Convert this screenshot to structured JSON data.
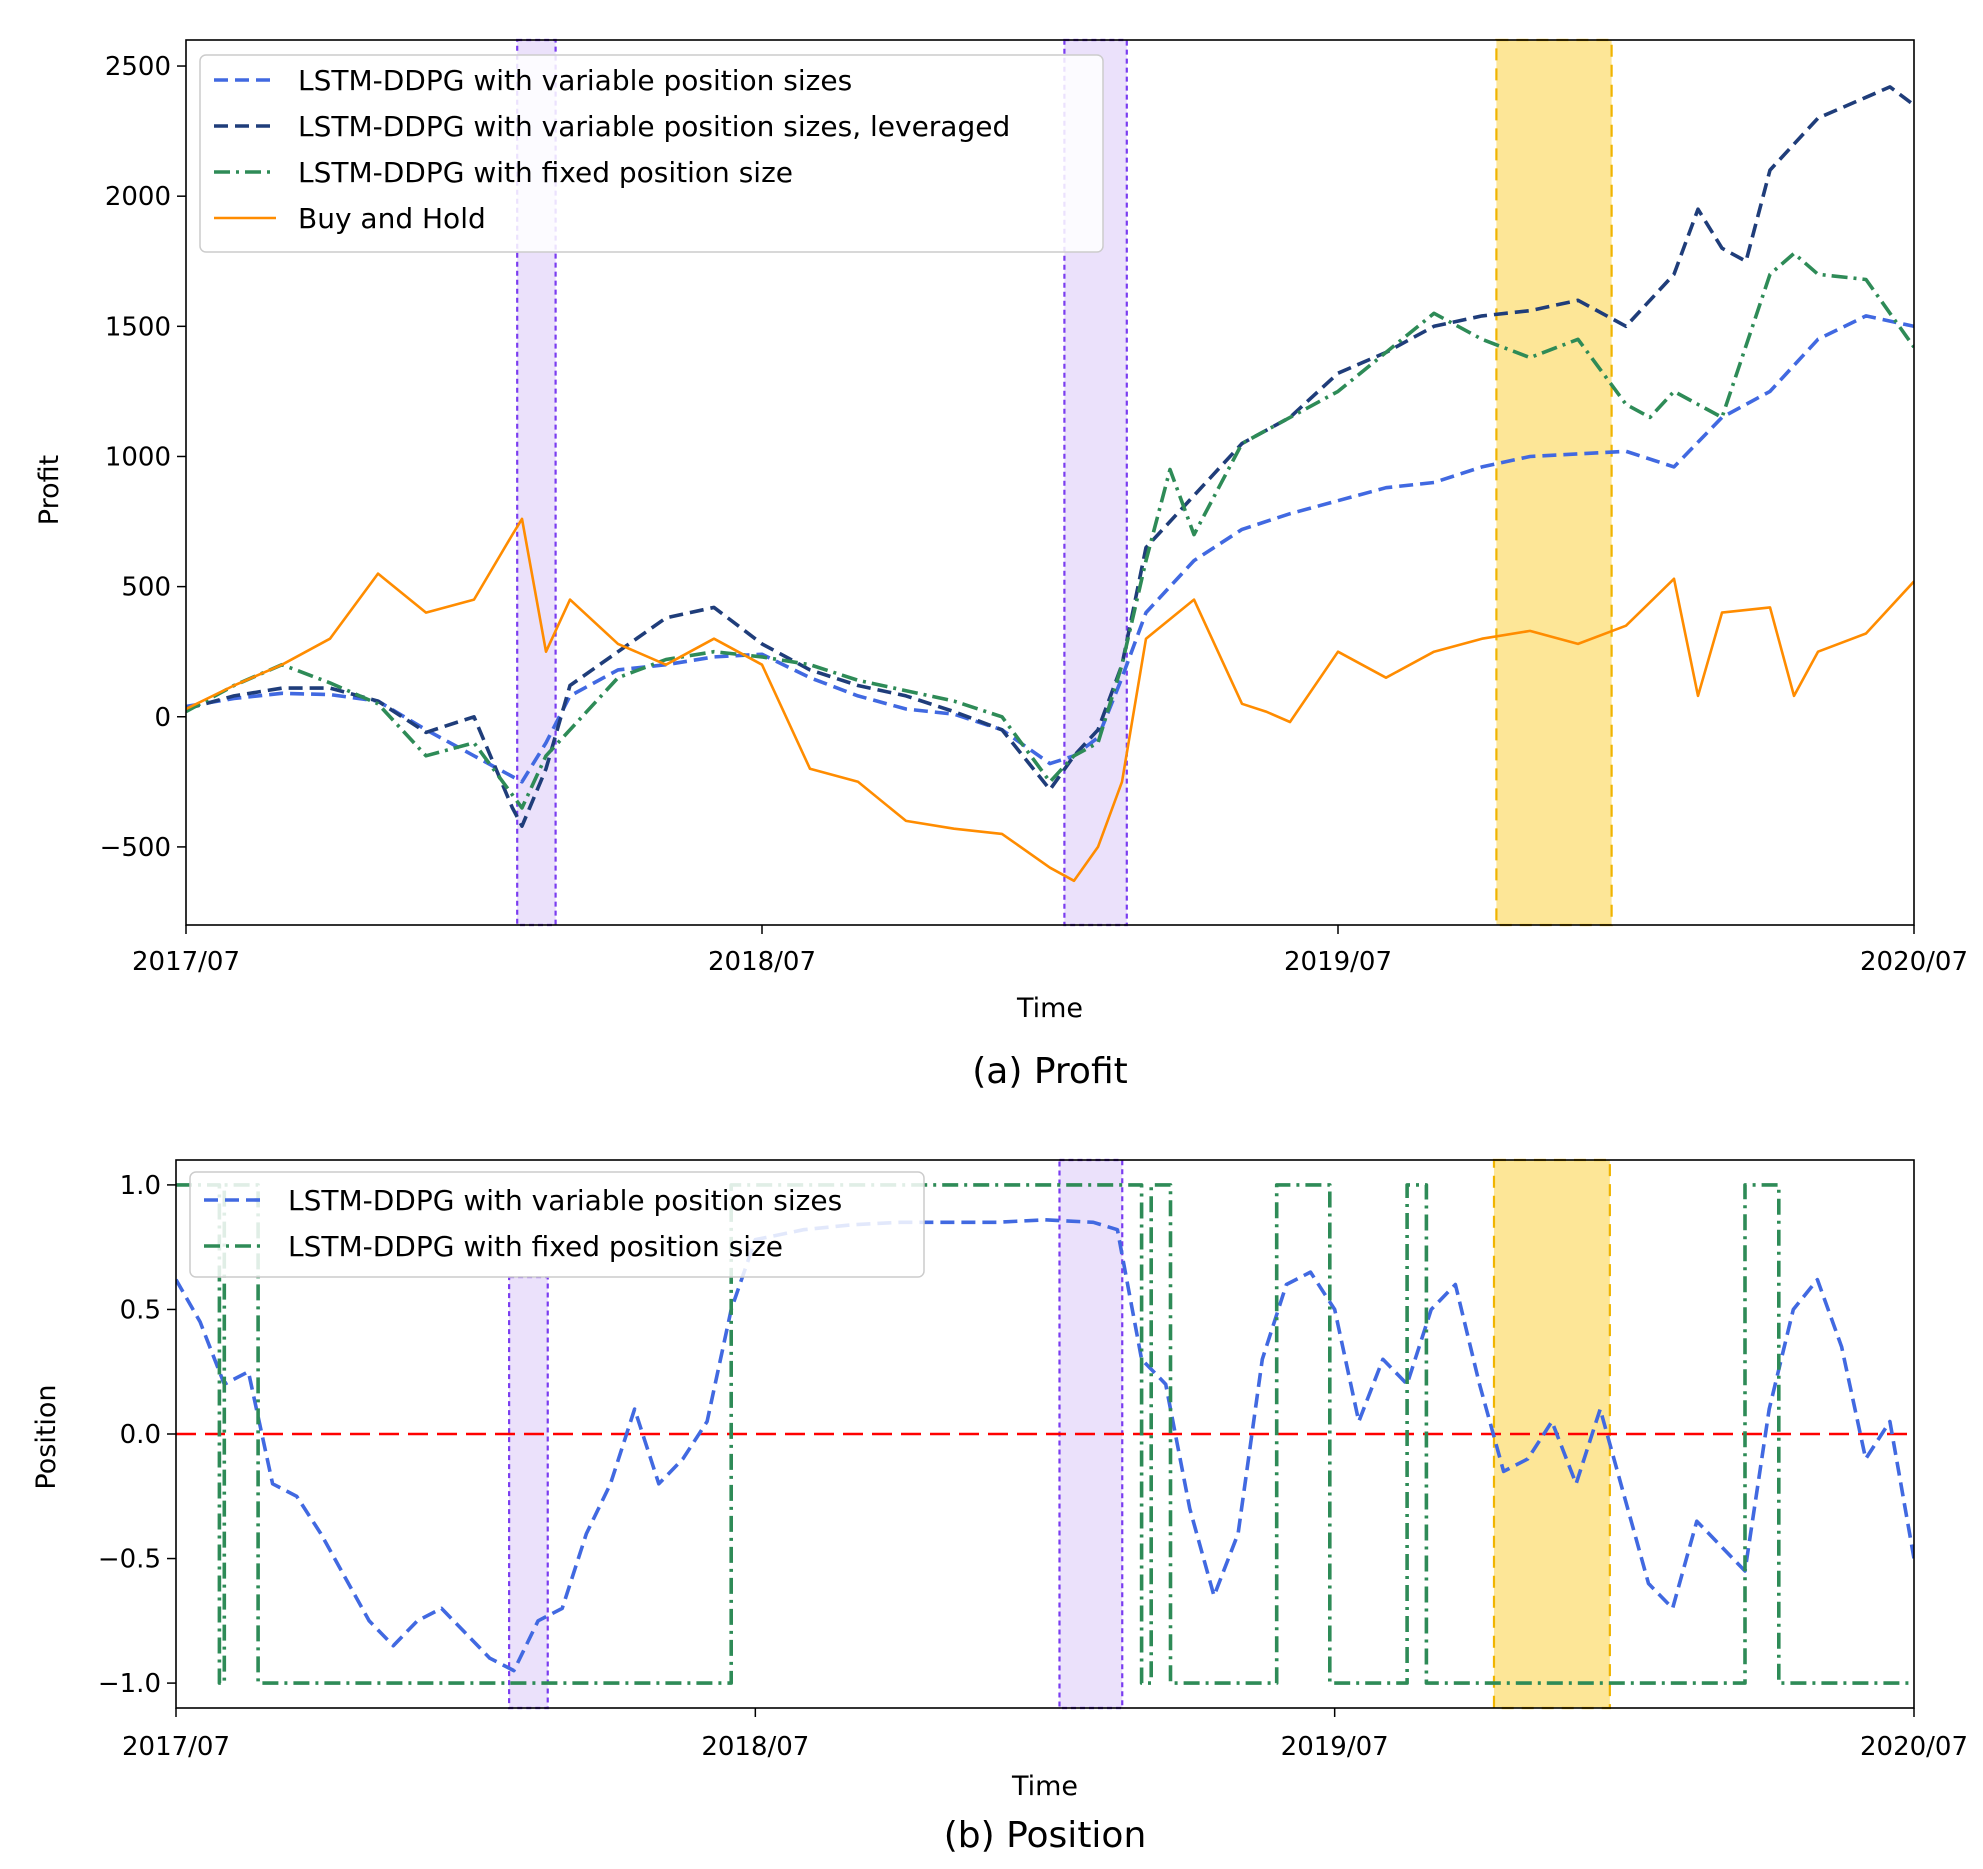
{
  "chart_data": [
    {
      "type": "line",
      "caption": "(a) Profit",
      "xlabel": "Time",
      "ylabel": "Profit",
      "xlim": [
        0,
        36
      ],
      "ylim": [
        -800,
        2600
      ],
      "x_ticks": [
        {
          "value": 0,
          "label": "2017/07"
        },
        {
          "value": 12,
          "label": "2018/07"
        },
        {
          "value": 24,
          "label": "2019/07"
        },
        {
          "value": 36,
          "label": "2020/07"
        }
      ],
      "y_ticks": [
        {
          "value": -500,
          "label": "−500"
        },
        {
          "value": 0,
          "label": "0"
        },
        {
          "value": 500,
          "label": "500"
        },
        {
          "value": 1000,
          "label": "1000"
        },
        {
          "value": 1500,
          "label": "1500"
        },
        {
          "value": 2000,
          "label": "2000"
        },
        {
          "value": 2500,
          "label": "2500"
        }
      ],
      "legend_position": "top-left",
      "highlights": [
        {
          "x0": 6.9,
          "x1": 7.7,
          "color": "#e8dcfa",
          "edge": "#7a3cf0",
          "style": "dotted"
        },
        {
          "x0": 18.3,
          "x1": 19.6,
          "color": "#e8dcfa",
          "edge": "#7a3cf0",
          "style": "dotted"
        },
        {
          "x0": 27.3,
          "x1": 29.7,
          "color": "#fde591",
          "edge": "#f0b400",
          "style": "dashed"
        }
      ],
      "series": [
        {
          "name": "LSTM-DDPG with variable position sizes",
          "color": "#4169e1",
          "dash": "dashed",
          "x": [
            0,
            1,
            2,
            3,
            4,
            5,
            6,
            7,
            7.5,
            8,
            9,
            10,
            11,
            12,
            13,
            14,
            15,
            16,
            17,
            18,
            18.5,
            19,
            19.5,
            20,
            21,
            22,
            23,
            24,
            25,
            26,
            27,
            28,
            29,
            30,
            31,
            32,
            33,
            34,
            35,
            36
          ],
          "y": [
            40,
            70,
            90,
            85,
            60,
            -50,
            -150,
            -250,
            -100,
            80,
            180,
            200,
            230,
            240,
            150,
            80,
            30,
            10,
            -50,
            -180,
            -150,
            -80,
            150,
            400,
            600,
            720,
            780,
            830,
            880,
            900,
            960,
            1000,
            1010,
            1020,
            960,
            1150,
            1250,
            1450,
            1540,
            1500
          ]
        },
        {
          "name": "LSTM-DDPG with variable position sizes, leveraged",
          "color": "#1f3d7a",
          "dash": "dashed",
          "x": [
            0,
            1,
            2,
            3,
            4,
            5,
            6,
            6.8,
            7,
            7.5,
            8,
            9,
            10,
            11,
            12,
            13,
            14,
            15,
            16,
            17,
            18,
            18.5,
            19,
            19.5,
            20,
            21,
            22,
            23,
            24,
            25,
            26,
            27,
            28,
            29,
            30,
            31,
            31.5,
            32,
            32.5,
            33,
            34,
            35,
            35.5,
            36
          ],
          "y": [
            30,
            80,
            110,
            110,
            60,
            -60,
            0,
            -350,
            -420,
            -200,
            120,
            250,
            380,
            420,
            280,
            180,
            120,
            80,
            20,
            -50,
            -280,
            -150,
            -50,
            200,
            650,
            850,
            1050,
            1150,
            1320,
            1400,
            1500,
            1540,
            1560,
            1600,
            1500,
            1700,
            1950,
            1800,
            1750,
            2100,
            2300,
            2380,
            2420,
            2350
          ]
        },
        {
          "name": "LSTM-DDPG with fixed position size",
          "color": "#2e8b57",
          "dash": "dashdot",
          "x": [
            0,
            1,
            2,
            3,
            4,
            5,
            6,
            7,
            7.5,
            8,
            9,
            10,
            11,
            12,
            13,
            14,
            15,
            16,
            17,
            18,
            18.5,
            19,
            19.5,
            20,
            20.5,
            21,
            22,
            23,
            24,
            25,
            26,
            27,
            28,
            29,
            30,
            30.5,
            31,
            31.5,
            32,
            33,
            33.5,
            34,
            35,
            35.5,
            36
          ],
          "y": [
            20,
            120,
            200,
            130,
            50,
            -150,
            -100,
            -350,
            -150,
            -50,
            150,
            220,
            250,
            230,
            200,
            140,
            100,
            60,
            0,
            -250,
            -150,
            -100,
            200,
            600,
            950,
            700,
            1050,
            1150,
            1250,
            1400,
            1550,
            1450,
            1380,
            1450,
            1200,
            1150,
            1250,
            1200,
            1150,
            1700,
            1780,
            1700,
            1680,
            1550,
            1420
          ]
        },
        {
          "name": "Buy and Hold",
          "color": "#ff8c00",
          "dash": "solid",
          "x": [
            0,
            1,
            2,
            3,
            4,
            5,
            6,
            6.8,
            7,
            7.5,
            8,
            9,
            10,
            11,
            12,
            13,
            14,
            15,
            16,
            17,
            18,
            18.5,
            19,
            19.5,
            20,
            21,
            22,
            22.5,
            23,
            24,
            25,
            26,
            27,
            28,
            29,
            30,
            31,
            31.5,
            32,
            33,
            33.5,
            34,
            35,
            36
          ],
          "y": [
            30,
            120,
            200,
            300,
            550,
            400,
            450,
            700,
            760,
            250,
            450,
            280,
            200,
            300,
            200,
            -200,
            -250,
            -400,
            -430,
            -450,
            -580,
            -630,
            -500,
            -250,
            300,
            450,
            50,
            20,
            -20,
            250,
            150,
            250,
            300,
            330,
            280,
            350,
            530,
            80,
            400,
            420,
            80,
            250,
            320,
            520
          ]
        }
      ]
    },
    {
      "type": "line",
      "caption": "(b) Position",
      "xlabel": "Time",
      "ylabel": "Position",
      "xlim": [
        0,
        36
      ],
      "ylim": [
        -1.1,
        1.1
      ],
      "x_ticks": [
        {
          "value": 0,
          "label": "2017/07"
        },
        {
          "value": 12,
          "label": "2018/07"
        },
        {
          "value": 24,
          "label": "2019/07"
        },
        {
          "value": 36,
          "label": "2020/07"
        }
      ],
      "y_ticks": [
        {
          "value": -1.0,
          "label": "−1.0"
        },
        {
          "value": -0.5,
          "label": "−0.5"
        },
        {
          "value": 0.0,
          "label": "0.0"
        },
        {
          "value": 0.5,
          "label": "0.5"
        },
        {
          "value": 1.0,
          "label": "1.0"
        }
      ],
      "reference_line": {
        "value": 0.0,
        "color": "#ff0000",
        "dash": "dashed"
      },
      "legend_position": "top-left",
      "highlights": [
        {
          "x0": 6.9,
          "x1": 7.7,
          "y0": -1.1,
          "y1": 0.63,
          "color": "#e8dcfa",
          "edge": "#7a3cf0",
          "style": "dotted"
        },
        {
          "x0": 18.3,
          "x1": 19.6,
          "y0": -1.1,
          "y1": 1.1,
          "color": "#e8dcfa",
          "edge": "#7a3cf0",
          "style": "dotted"
        },
        {
          "x0": 27.3,
          "x1": 29.7,
          "y0": -1.1,
          "y1": 1.1,
          "color": "#fde591",
          "edge": "#f0b400",
          "style": "dashed"
        }
      ],
      "series": [
        {
          "name": "LSTM-DDPG with variable position sizes",
          "color": "#4169e1",
          "dash": "dashed",
          "x": [
            0,
            0.5,
            1,
            1.5,
            2,
            2.5,
            3,
            4,
            4.5,
            5,
            5.5,
            6,
            6.5,
            7,
            7.5,
            8,
            8.5,
            9,
            9.5,
            10,
            10.5,
            11,
            11.5,
            12,
            13,
            14,
            15,
            16,
            17,
            18,
            19,
            19.5,
            20,
            20.5,
            21,
            21.5,
            22,
            22.5,
            23,
            23.5,
            24,
            24.5,
            25,
            25.5,
            26,
            26.5,
            27,
            27.5,
            28,
            28.5,
            29,
            29.5,
            30,
            30.5,
            31,
            31.5,
            32,
            32.5,
            33,
            33.5,
            34,
            34.5,
            35,
            35.5,
            36
          ],
          "y": [
            0.62,
            0.45,
            0.2,
            0.25,
            -0.2,
            -0.25,
            -0.4,
            -0.75,
            -0.85,
            -0.75,
            -0.7,
            -0.8,
            -0.9,
            -0.95,
            -0.75,
            -0.7,
            -0.4,
            -0.2,
            0.1,
            -0.2,
            -0.1,
            0.05,
            0.5,
            0.78,
            0.82,
            0.84,
            0.85,
            0.85,
            0.85,
            0.86,
            0.85,
            0.82,
            0.3,
            0.2,
            -0.3,
            -0.65,
            -0.4,
            0.3,
            0.6,
            0.65,
            0.5,
            0.05,
            0.3,
            0.2,
            0.5,
            0.6,
            0.2,
            -0.15,
            -0.1,
            0.05,
            -0.2,
            0.1,
            -0.25,
            -0.6,
            -0.7,
            -0.35,
            -0.45,
            -0.55,
            0.1,
            0.5,
            0.62,
            0.35,
            -0.1,
            0.05,
            -0.5
          ]
        },
        {
          "name": "LSTM-DDPG with fixed position size",
          "color": "#2e8b57",
          "dash": "dashdot",
          "x": [
            0,
            0.9,
            0.9,
            1.0,
            1.0,
            1.7,
            1.7,
            11.5,
            11.5,
            20.0,
            20.0,
            20.2,
            20.2,
            20.6,
            20.6,
            22.8,
            22.8,
            23.9,
            23.9,
            25.5,
            25.5,
            25.9,
            25.9,
            32.5,
            32.5,
            33.2,
            33.2,
            36
          ],
          "y": [
            1,
            1,
            -1,
            -1,
            1,
            1,
            -1,
            -1,
            1,
            1,
            -1,
            -1,
            1,
            1,
            -1,
            -1,
            1,
            1,
            -1,
            -1,
            1,
            1,
            -1,
            -1,
            1,
            1,
            -1,
            -1
          ]
        }
      ]
    }
  ]
}
